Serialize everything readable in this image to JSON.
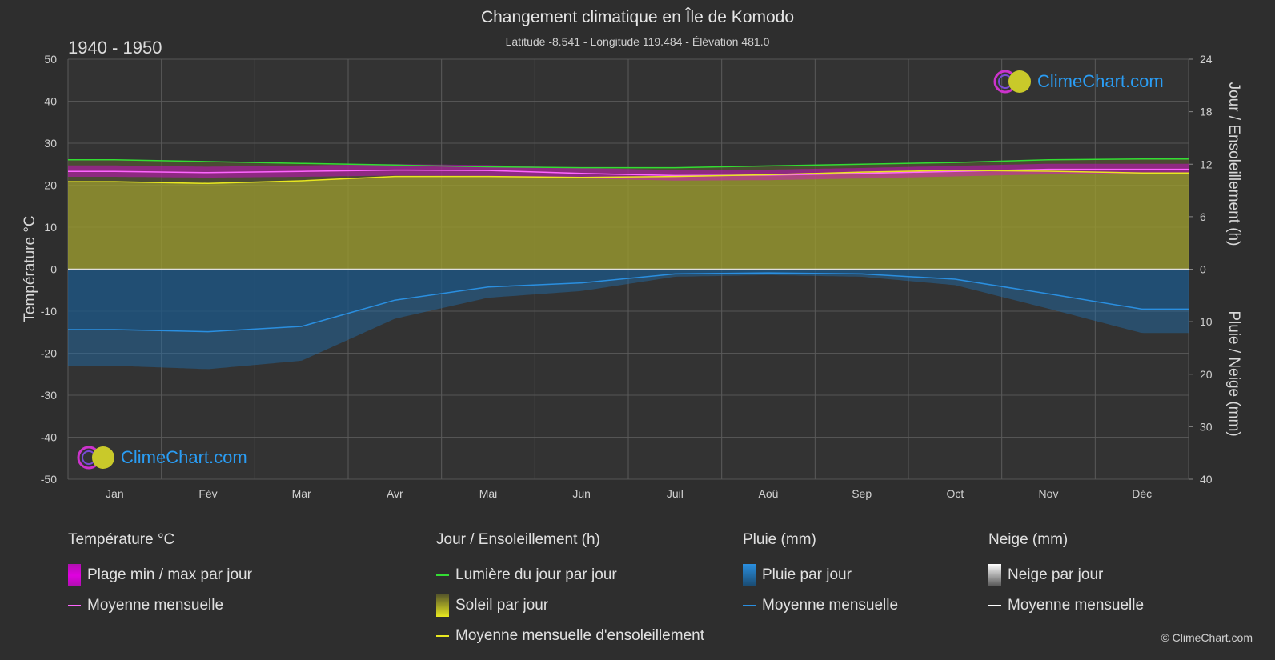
{
  "header": {
    "title": "Changement climatique en Île de Komodo",
    "subtitle": "Latitude -8.541 - Longitude 119.484 - Élévation 481.0",
    "period": "1940 - 1950"
  },
  "logo": {
    "text": "ClimeChart.com"
  },
  "copyright": "© ClimeChart.com",
  "colors": {
    "background": "#2e2e2e",
    "temp_range": "#e000e0",
    "temp_mean": "#ff66ff",
    "daylight": "#33dd33",
    "sunshine_fill": "#9a9a2e",
    "sunshine_mean": "#e8e820",
    "rain_fill": "#1f6fb0",
    "rain_mean": "#2a8fe0",
    "snow": "#ffffff",
    "logo_text": "#2a9df4"
  },
  "legend": {
    "temperature": {
      "title": "Température °C",
      "items": [
        {
          "label": "Plage min / max par jour",
          "icon": "range-swatch"
        },
        {
          "label": "Moyenne mensuelle",
          "icon": "line-swatch"
        }
      ]
    },
    "sunshine": {
      "title": "Jour / Ensoleillement (h)",
      "items": [
        {
          "label": "Lumière du jour par jour",
          "icon": "line-swatch"
        },
        {
          "label": "Soleil par jour",
          "icon": "bar-swatch"
        },
        {
          "label": "Moyenne mensuelle d'ensoleillement",
          "icon": "line-swatch"
        }
      ]
    },
    "rain": {
      "title": "Pluie (mm)",
      "items": [
        {
          "label": "Pluie par jour",
          "icon": "bar-swatch"
        },
        {
          "label": "Moyenne mensuelle",
          "icon": "line-swatch"
        }
      ]
    },
    "snow": {
      "title": "Neige (mm)",
      "items": [
        {
          "label": "Neige par jour",
          "icon": "bar-swatch"
        },
        {
          "label": "Moyenne mensuelle",
          "icon": "line-swatch"
        }
      ]
    }
  },
  "chart_data": {
    "type": "line",
    "categories": [
      "Jan",
      "Fév",
      "Mar",
      "Avr",
      "Mai",
      "Jun",
      "Juil",
      "Aoû",
      "Sep",
      "Oct",
      "Nov",
      "Déc"
    ],
    "y_left": {
      "label": "Température °C",
      "range": [
        -50,
        50
      ],
      "ticks": [
        50,
        40,
        30,
        20,
        10,
        0,
        -10,
        -20,
        -30,
        -40,
        -50
      ]
    },
    "y_right_top": {
      "label": "Jour / Ensoleillement (h)",
      "range": [
        0,
        24
      ],
      "ticks": [
        24,
        18,
        12,
        6,
        0
      ]
    },
    "y_right_bottom": {
      "label": "Pluie / Neige (mm)",
      "range": [
        0,
        40
      ],
      "ticks": [
        0,
        10,
        20,
        30,
        40
      ]
    },
    "grid": true,
    "series": [
      {
        "name": "Lumière du jour par jour",
        "axis": "hours",
        "values": [
          12.5,
          12.3,
          12.1,
          11.9,
          11.7,
          11.6,
          11.6,
          11.8,
          12.0,
          12.2,
          12.5,
          12.6
        ]
      },
      {
        "name": "Moyenne mensuelle",
        "axis": "temperature",
        "values": [
          23.3,
          23.0,
          23.3,
          23.6,
          23.5,
          22.8,
          22.3,
          22.4,
          22.8,
          23.3,
          23.8,
          23.8
        ]
      },
      {
        "name": "Moyenne mensuelle d'ensoleillement",
        "axis": "hours",
        "values": [
          10.0,
          9.8,
          10.1,
          10.6,
          10.6,
          10.5,
          10.6,
          10.8,
          11.1,
          11.3,
          11.2,
          11.0
        ]
      },
      {
        "name": "Moyenne mensuelle",
        "axis": "rain",
        "values": [
          11.5,
          11.9,
          10.9,
          5.9,
          3.4,
          2.6,
          0.9,
          0.7,
          0.9,
          1.9,
          4.7,
          7.6
        ]
      }
    ],
    "temperature_range": {
      "min": [
        22.0,
        21.8,
        22.0,
        22.3,
        22.2,
        21.6,
        21.1,
        21.2,
        21.6,
        22.1,
        22.6,
        22.6
      ],
      "max": [
        24.7,
        24.4,
        24.7,
        25.0,
        24.8,
        24.1,
        23.6,
        23.7,
        24.1,
        24.6,
        25.1,
        25.1
      ]
    }
  }
}
